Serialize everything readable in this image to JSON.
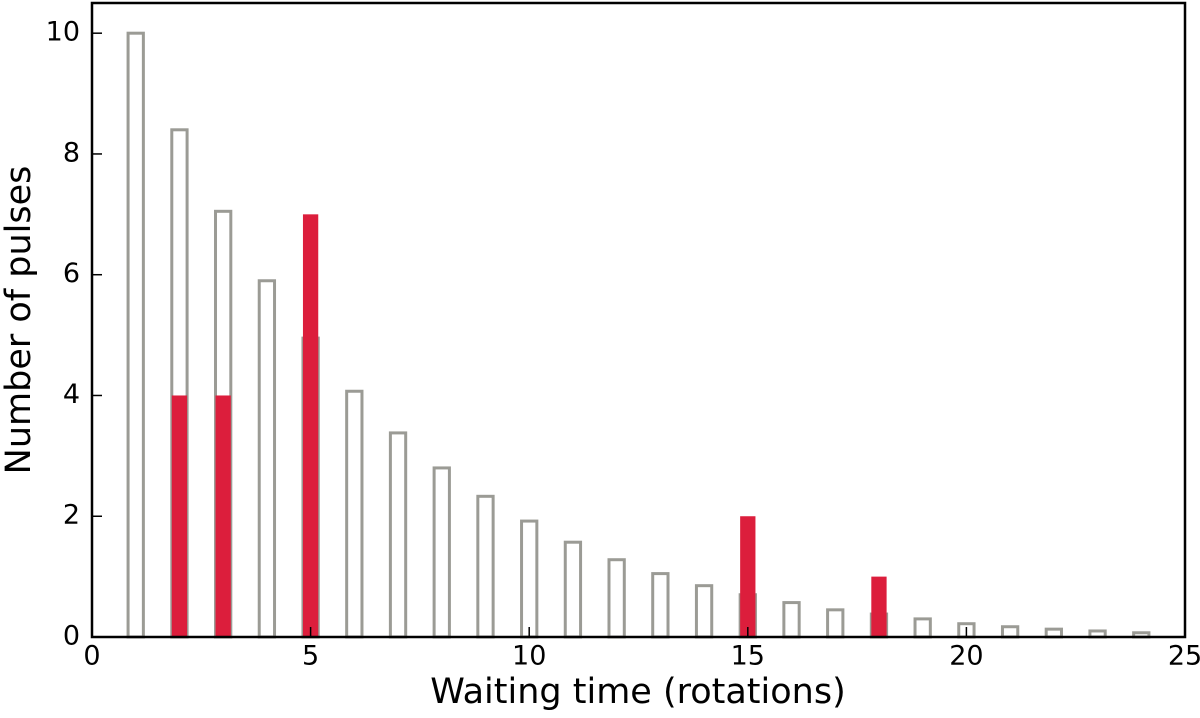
{
  "chart_data": {
    "type": "bar",
    "xlabel": "Waiting time (rotations)",
    "ylabel": "Number of pulses",
    "x": [
      1,
      2,
      3,
      4,
      5,
      6,
      7,
      8,
      9,
      10,
      11,
      12,
      13,
      14,
      15,
      16,
      17,
      18,
      19,
      20,
      21,
      22,
      23,
      24
    ],
    "series": [
      {
        "color": "#9b9b95",
        "fill": "none",
        "values": [
          10,
          8.4,
          7.05,
          5.9,
          4.95,
          4.07,
          3.38,
          2.8,
          2.33,
          1.92,
          1.57,
          1.28,
          1.05,
          0.85,
          0.7,
          0.57,
          0.45,
          0.38,
          0.3,
          0.22,
          0.17,
          0.13,
          0.1,
          0.07
        ]
      },
      {
        "color": "#dc1e3c",
        "fill": "solid",
        "values": [
          null,
          4,
          4,
          null,
          7,
          null,
          null,
          null,
          null,
          null,
          null,
          null,
          null,
          null,
          2,
          null,
          null,
          1,
          null,
          null,
          null,
          null,
          null,
          null
        ]
      }
    ],
    "xlim": [
      0,
      25
    ],
    "xticks": [
      0,
      5,
      10,
      15,
      20,
      25
    ],
    "ylim": [
      0,
      10.5
    ],
    "yticks": [
      0,
      2,
      4,
      6,
      8,
      10
    ],
    "grid": false
  }
}
